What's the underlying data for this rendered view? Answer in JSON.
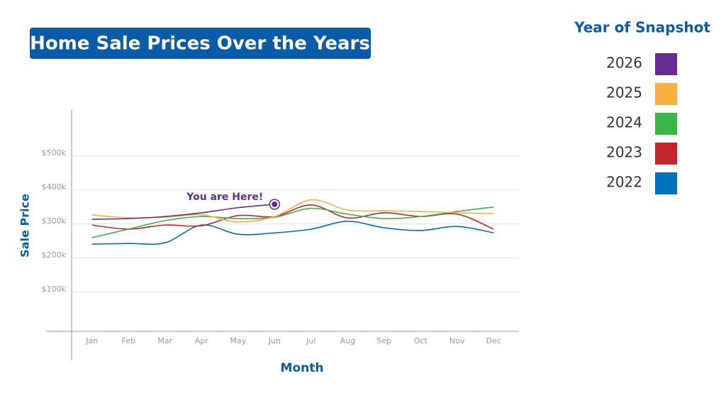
{
  "chart_data": {
    "type": "line",
    "title": "Home Sale Prices Over the Years",
    "xlabel": "Month",
    "ylabel": "Sale Price",
    "legend_title": "Year of Snapshot",
    "legend": "right",
    "grid": true,
    "annotation": {
      "text": "You are Here!",
      "series": 0,
      "index": 5
    },
    "categories": [
      "Jan",
      "Feb",
      "Mar",
      "Apr",
      "May",
      "Jun",
      "Jul",
      "Aug",
      "Sep",
      "Oct",
      "Nov",
      "Dec"
    ],
    "ylim": [
      -15000,
      635000
    ],
    "yticks": [
      {
        "value": 100000,
        "label": "$100k"
      },
      {
        "value": 200000,
        "label": "$200k"
      },
      {
        "value": 300000,
        "label": "$300k"
      },
      {
        "value": 400000,
        "label": "$400k"
      },
      {
        "value": 500000,
        "label": "$500k"
      }
    ],
    "series": [
      {
        "name": "2026",
        "color": "#662d91",
        "values": [
          314000,
          316000,
          322000,
          333000,
          348000,
          358000,
          null,
          null,
          null,
          null,
          null,
          null
        ]
      },
      {
        "name": "2025",
        "color": "#fbb040",
        "values": [
          327000,
          318000,
          320000,
          327000,
          306000,
          322000,
          371000,
          341000,
          339000,
          337000,
          333000,
          331000
        ]
      },
      {
        "name": "2024",
        "color": "#39b54a",
        "values": [
          260000,
          285000,
          310000,
          322000,
          316000,
          320000,
          346000,
          329000,
          316000,
          322000,
          337000,
          350000
        ]
      },
      {
        "name": "2023",
        "color": "#c1272d",
        "values": [
          297000,
          285000,
          297000,
          295000,
          325000,
          322000,
          356000,
          318000,
          333000,
          322000,
          329000,
          285000
        ]
      },
      {
        "name": "2022",
        "color": "#0071bc",
        "values": [
          241000,
          243000,
          245000,
          297000,
          270000,
          274000,
          285000,
          308000,
          289000,
          281000,
          293000,
          274000
        ]
      }
    ]
  }
}
